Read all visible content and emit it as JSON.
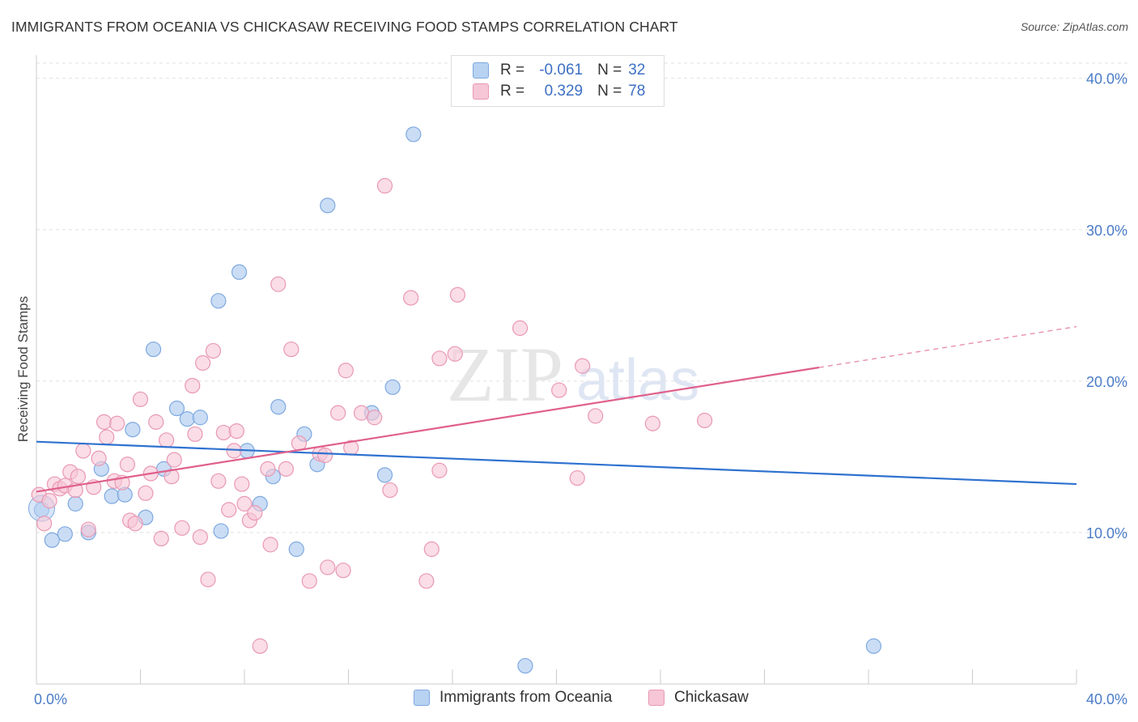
{
  "header": {
    "title": "IMMIGRANTS FROM OCEANIA VS CHICKASAW RECEIVING FOOD STAMPS CORRELATION CHART",
    "source": "Source: ZipAtlas.com"
  },
  "legend_top": {
    "rows": [
      {
        "r_label": "R =",
        "r_value": "-0.061",
        "n_label": "N =",
        "n_value": "32"
      },
      {
        "r_label": "R =",
        "r_value": "0.329",
        "n_label": "N =",
        "n_value": "78"
      }
    ]
  },
  "legend_bottom": {
    "items": [
      "Immigrants from Oceania",
      "Chickasaw"
    ]
  },
  "watermark": {
    "zip": "ZIP",
    "atlas": "atlas"
  },
  "colors": {
    "blue_fill": "#b8d2f2",
    "blue_stroke": "#7fa9e0",
    "blue_line": "#2f72d0",
    "pink_fill": "#f6c6d6",
    "pink_stroke": "#e998b5",
    "pink_line": "#e0608c",
    "grid": "#e0e0e0",
    "axis_text": "#4a7cc7"
  },
  "chart_data": {
    "type": "scatter",
    "title": "IMMIGRANTS FROM OCEANIA VS CHICKASAW RECEIVING FOOD STAMPS CORRELATION CHART",
    "xlabel": "",
    "ylabel": "Receiving Food Stamps",
    "xlim": [
      0,
      40
    ],
    "ylim": [
      0,
      41
    ],
    "x_tick_labels": [
      "0.0%",
      "40.0%"
    ],
    "y_ticks": [
      10,
      20,
      30,
      40
    ],
    "y_tick_labels": [
      "10.0%",
      "20.0%",
      "30.0%",
      "40.0%"
    ],
    "grid": true,
    "series": [
      {
        "name": "Immigrants from Oceania",
        "r": -0.061,
        "n": 32,
        "trend": {
          "x": [
            0,
            40
          ],
          "y": [
            16.0,
            13.2
          ],
          "dashed_from": null
        },
        "points": [
          [
            0.2,
            11.5
          ],
          [
            0.6,
            9.5
          ],
          [
            1.1,
            9.9
          ],
          [
            1.5,
            11.9
          ],
          [
            2.0,
            10.0
          ],
          [
            2.5,
            14.2
          ],
          [
            2.9,
            12.4
          ],
          [
            3.4,
            12.5
          ],
          [
            3.7,
            16.8
          ],
          [
            4.2,
            11.0
          ],
          [
            4.5,
            22.1
          ],
          [
            4.9,
            14.2
          ],
          [
            5.4,
            18.2
          ],
          [
            5.8,
            17.5
          ],
          [
            6.3,
            17.6
          ],
          [
            7.0,
            25.3
          ],
          [
            7.1,
            10.1
          ],
          [
            7.8,
            27.2
          ],
          [
            8.1,
            15.4
          ],
          [
            8.6,
            11.9
          ],
          [
            9.1,
            13.7
          ],
          [
            9.3,
            18.3
          ],
          [
            10.0,
            8.9
          ],
          [
            10.3,
            16.5
          ],
          [
            10.8,
            14.5
          ],
          [
            11.2,
            31.6
          ],
          [
            12.9,
            17.9
          ],
          [
            13.4,
            13.8
          ],
          [
            13.7,
            19.6
          ],
          [
            14.5,
            36.3
          ],
          [
            18.8,
            1.2
          ],
          [
            32.2,
            2.5
          ]
        ]
      },
      {
        "name": "Chickasaw",
        "r": 0.329,
        "n": 78,
        "trend": {
          "x": [
            0,
            30.1
          ],
          "y": [
            12.7,
            20.9
          ],
          "dashed_to": [
            40,
            23.6
          ]
        },
        "points": [
          [
            0.1,
            12.5
          ],
          [
            0.3,
            10.6
          ],
          [
            0.5,
            12.1
          ],
          [
            0.7,
            13.2
          ],
          [
            0.9,
            12.9
          ],
          [
            1.1,
            13.1
          ],
          [
            1.3,
            14.0
          ],
          [
            1.5,
            12.8
          ],
          [
            1.6,
            13.7
          ],
          [
            1.8,
            15.4
          ],
          [
            2.0,
            10.2
          ],
          [
            2.2,
            13.0
          ],
          [
            2.4,
            14.9
          ],
          [
            2.6,
            17.3
          ],
          [
            2.7,
            16.3
          ],
          [
            3.0,
            13.4
          ],
          [
            3.1,
            17.2
          ],
          [
            3.3,
            13.3
          ],
          [
            3.5,
            14.5
          ],
          [
            3.6,
            10.8
          ],
          [
            3.8,
            10.6
          ],
          [
            4.0,
            18.8
          ],
          [
            4.2,
            12.6
          ],
          [
            4.4,
            13.9
          ],
          [
            4.6,
            17.3
          ],
          [
            4.8,
            9.6
          ],
          [
            5.0,
            16.1
          ],
          [
            5.2,
            13.7
          ],
          [
            5.3,
            14.8
          ],
          [
            5.6,
            10.3
          ],
          [
            6.0,
            19.7
          ],
          [
            6.1,
            16.5
          ],
          [
            6.3,
            9.7
          ],
          [
            6.4,
            21.2
          ],
          [
            6.6,
            6.9
          ],
          [
            6.8,
            22.0
          ],
          [
            7.0,
            13.4
          ],
          [
            7.2,
            16.6
          ],
          [
            7.4,
            11.5
          ],
          [
            7.6,
            15.4
          ],
          [
            7.7,
            16.7
          ],
          [
            7.9,
            13.2
          ],
          [
            8.0,
            11.9
          ],
          [
            8.2,
            10.8
          ],
          [
            8.4,
            11.3
          ],
          [
            8.6,
            2.5
          ],
          [
            8.9,
            14.2
          ],
          [
            9.0,
            9.2
          ],
          [
            9.3,
            26.4
          ],
          [
            9.6,
            14.2
          ],
          [
            9.8,
            22.1
          ],
          [
            10.1,
            15.9
          ],
          [
            10.5,
            6.8
          ],
          [
            10.9,
            15.2
          ],
          [
            11.1,
            15.1
          ],
          [
            11.2,
            7.7
          ],
          [
            11.6,
            17.9
          ],
          [
            11.8,
            7.5
          ],
          [
            11.9,
            20.7
          ],
          [
            12.1,
            15.6
          ],
          [
            12.5,
            17.9
          ],
          [
            13.0,
            17.6
          ],
          [
            13.4,
            32.9
          ],
          [
            13.6,
            12.8
          ],
          [
            14.4,
            25.5
          ],
          [
            15.0,
            6.8
          ],
          [
            15.2,
            8.9
          ],
          [
            15.5,
            14.1
          ],
          [
            15.5,
            21.5
          ],
          [
            16.1,
            21.8
          ],
          [
            16.2,
            25.7
          ],
          [
            18.6,
            23.5
          ],
          [
            20.1,
            19.4
          ],
          [
            20.8,
            13.6
          ],
          [
            21.0,
            21.0
          ],
          [
            21.5,
            17.7
          ],
          [
            23.7,
            17.2
          ],
          [
            25.7,
            17.4
          ]
        ]
      }
    ]
  }
}
